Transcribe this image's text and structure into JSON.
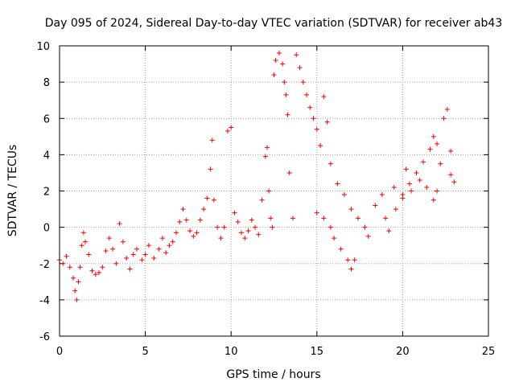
{
  "chart_data": {
    "type": "scatter",
    "title": "Day 095 of 2024, Sidereal Day-to-day VTEC variation (SDTVAR) for receiver ab43",
    "xlabel": "GPS time / hours",
    "ylabel": "SDTVAR / TECUs",
    "xlim": [
      0,
      25
    ],
    "ylim": [
      -6,
      10
    ],
    "xticks": [
      0,
      5,
      10,
      15,
      20,
      25
    ],
    "yticks": [
      -6,
      -4,
      -2,
      0,
      2,
      4,
      6,
      8,
      10
    ],
    "xtick_labels": [
      "0",
      "5",
      "10",
      "15",
      "20",
      "25"
    ],
    "ytick_labels": [
      "-6",
      "-4",
      "-2",
      "0",
      "2",
      "4",
      "6",
      "8",
      "10"
    ],
    "grid": true,
    "marker": "+",
    "color": "#ff0000",
    "series": [
      {
        "name": "SDTVAR",
        "points": [
          [
            0.0,
            -1.8
          ],
          [
            0.2,
            -2.0
          ],
          [
            0.4,
            -1.6
          ],
          [
            0.6,
            -2.2
          ],
          [
            0.8,
            -2.8
          ],
          [
            0.9,
            -3.5
          ],
          [
            1.0,
            -4.0
          ],
          [
            1.1,
            -3.0
          ],
          [
            1.2,
            -2.2
          ],
          [
            1.3,
            -1.0
          ],
          [
            1.4,
            -0.3
          ],
          [
            1.5,
            -0.8
          ],
          [
            1.7,
            -1.5
          ],
          [
            1.9,
            -2.4
          ],
          [
            2.1,
            -2.6
          ],
          [
            2.3,
            -2.5
          ],
          [
            2.5,
            -2.2
          ],
          [
            2.7,
            -1.3
          ],
          [
            2.9,
            -0.6
          ],
          [
            3.1,
            -1.2
          ],
          [
            3.3,
            -2.0
          ],
          [
            3.5,
            0.2
          ],
          [
            3.7,
            -0.8
          ],
          [
            3.9,
            -1.7
          ],
          [
            4.1,
            -2.3
          ],
          [
            4.3,
            -1.5
          ],
          [
            4.5,
            -1.2
          ],
          [
            4.8,
            -1.8
          ],
          [
            5.0,
            -1.5
          ],
          [
            5.2,
            -1.0
          ],
          [
            5.5,
            -1.7
          ],
          [
            5.8,
            -1.2
          ],
          [
            6.0,
            -0.6
          ],
          [
            6.2,
            -1.4
          ],
          [
            6.4,
            -1.0
          ],
          [
            6.6,
            -0.8
          ],
          [
            6.8,
            -0.3
          ],
          [
            7.0,
            0.3
          ],
          [
            7.2,
            1.0
          ],
          [
            7.4,
            0.4
          ],
          [
            7.6,
            -0.2
          ],
          [
            7.8,
            -0.5
          ],
          [
            8.0,
            -0.3
          ],
          [
            8.2,
            0.4
          ],
          [
            8.4,
            1.0
          ],
          [
            8.6,
            1.6
          ],
          [
            8.8,
            3.2
          ],
          [
            8.9,
            4.8
          ],
          [
            9.0,
            1.5
          ],
          [
            9.2,
            0.0
          ],
          [
            9.4,
            -0.6
          ],
          [
            9.6,
            0.0
          ],
          [
            9.8,
            5.3
          ],
          [
            10.0,
            5.5
          ],
          [
            10.2,
            0.8
          ],
          [
            10.4,
            0.3
          ],
          [
            10.6,
            -0.3
          ],
          [
            10.8,
            -0.6
          ],
          [
            11.0,
            -0.2
          ],
          [
            11.2,
            0.4
          ],
          [
            11.4,
            0.0
          ],
          [
            11.6,
            -0.4
          ],
          [
            11.8,
            1.5
          ],
          [
            12.0,
            3.9
          ],
          [
            12.1,
            4.4
          ],
          [
            12.2,
            2.0
          ],
          [
            12.3,
            0.5
          ],
          [
            12.4,
            0.0
          ],
          [
            12.5,
            8.4
          ],
          [
            12.6,
            9.2
          ],
          [
            12.8,
            9.6
          ],
          [
            13.0,
            9.0
          ],
          [
            13.1,
            8.0
          ],
          [
            13.2,
            7.3
          ],
          [
            13.3,
            6.2
          ],
          [
            13.4,
            3.0
          ],
          [
            13.6,
            0.5
          ],
          [
            13.8,
            9.5
          ],
          [
            14.0,
            8.8
          ],
          [
            14.2,
            8.0
          ],
          [
            14.4,
            7.3
          ],
          [
            14.6,
            6.6
          ],
          [
            14.8,
            6.0
          ],
          [
            15.0,
            5.4
          ],
          [
            15.2,
            4.5
          ],
          [
            15.4,
            7.2
          ],
          [
            15.6,
            5.8
          ],
          [
            15.8,
            3.5
          ],
          [
            15.0,
            0.8
          ],
          [
            15.4,
            0.5
          ],
          [
            15.8,
            0.0
          ],
          [
            16.0,
            -0.6
          ],
          [
            16.4,
            -1.2
          ],
          [
            16.8,
            -1.8
          ],
          [
            17.0,
            -2.3
          ],
          [
            17.2,
            -1.8
          ],
          [
            16.2,
            2.4
          ],
          [
            16.6,
            1.8
          ],
          [
            17.0,
            1.0
          ],
          [
            17.4,
            0.5
          ],
          [
            17.8,
            0.0
          ],
          [
            18.0,
            -0.5
          ],
          [
            18.4,
            1.2
          ],
          [
            18.8,
            1.8
          ],
          [
            19.0,
            0.5
          ],
          [
            19.2,
            -0.2
          ],
          [
            19.6,
            1.0
          ],
          [
            20.0,
            1.8
          ],
          [
            20.4,
            2.4
          ],
          [
            20.8,
            3.0
          ],
          [
            21.2,
            3.6
          ],
          [
            21.6,
            4.3
          ],
          [
            21.8,
            5.0
          ],
          [
            22.0,
            4.6
          ],
          [
            22.2,
            3.5
          ],
          [
            22.4,
            6.0
          ],
          [
            22.6,
            6.5
          ],
          [
            22.8,
            4.2
          ],
          [
            23.0,
            2.5
          ],
          [
            22.8,
            2.9
          ],
          [
            19.5,
            2.2
          ],
          [
            20.0,
            1.6
          ],
          [
            20.5,
            2.0
          ],
          [
            21.0,
            2.6
          ],
          [
            21.4,
            2.2
          ],
          [
            21.8,
            1.5
          ],
          [
            22.0,
            2.0
          ],
          [
            20.2,
            3.2
          ]
        ]
      }
    ]
  }
}
